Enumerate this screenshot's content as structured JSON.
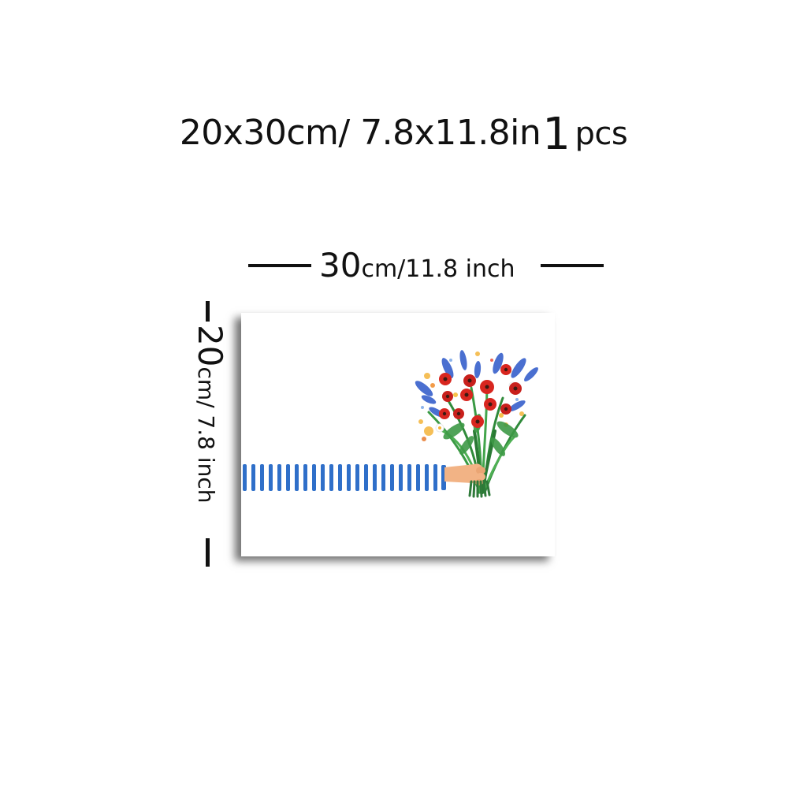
{
  "title": {
    "size": "20x30cm/ 7.8x11.8in",
    "count": "1",
    "unit": "pcs"
  },
  "width_dimension": {
    "value": "30",
    "unit_text": "cm/",
    "inches": "11.8",
    "inch_word": "inch"
  },
  "height_dimension": {
    "value": "20",
    "unit_text": "cm/ 7.8 inch"
  },
  "artwork": {
    "subject": "striped-arm-holding-flower-bouquet",
    "colors": {
      "sleeve_stripe": "#2f6fc9",
      "poppy": "#d8261f",
      "lavender": "#4a6fd0",
      "stems": "#2f8a3a",
      "skin": "#f2b385",
      "splash_yellow": "#f4b43a"
    }
  }
}
